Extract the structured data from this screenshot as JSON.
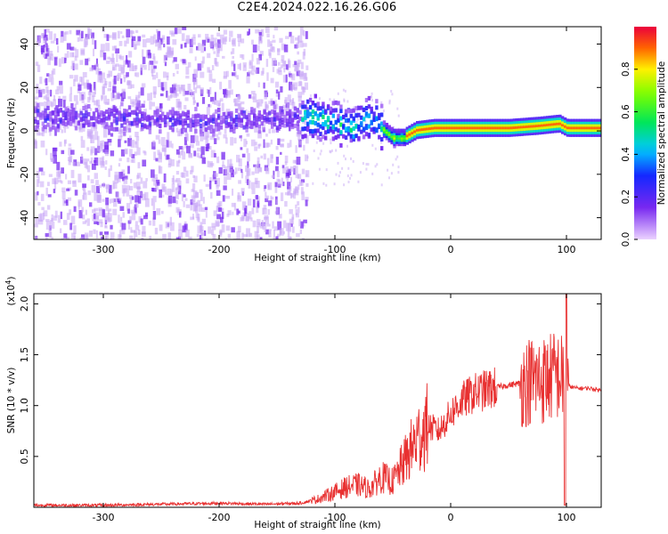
{
  "title": "C2E4.2024.022.16.26.G06",
  "colors": {
    "snr_line": "#e83030",
    "spectrogram_noise": "#c8a8f5",
    "spectrogram_band": "#7a2ef0"
  },
  "chart_data": [
    {
      "type": "heatmap",
      "xlabel": "Height of straight line (km)",
      "ylabel": "Frequency (Hz)",
      "xlim": [
        -360,
        130
      ],
      "ylim": [
        -50,
        48
      ],
      "xticks": [
        -300,
        -200,
        -100,
        0,
        100
      ],
      "yticks": [
        -40,
        -20,
        0,
        20,
        40
      ],
      "colorbar": {
        "label": "Normalized spectral amplitude",
        "range": [
          0,
          1
        ],
        "ticks": [
          0.0,
          0.2,
          0.4,
          0.6,
          0.8
        ],
        "colormap": "rainbow"
      },
      "ridge_center_hz": [
        [
          -360,
          6
        ],
        [
          -300,
          6
        ],
        [
          -250,
          5
        ],
        [
          -200,
          5
        ],
        [
          -150,
          5
        ],
        [
          -130,
          7
        ],
        [
          -115,
          6
        ],
        [
          -100,
          3
        ],
        [
          -85,
          2
        ],
        [
          -75,
          6
        ],
        [
          -65,
          4
        ],
        [
          -55,
          -1
        ],
        [
          -50,
          -3
        ],
        [
          -40,
          -3
        ],
        [
          -30,
          0
        ],
        [
          -15,
          1
        ],
        [
          0,
          1
        ],
        [
          25,
          1
        ],
        [
          50,
          1
        ],
        [
          75,
          2
        ],
        [
          93,
          3
        ],
        [
          100,
          1
        ],
        [
          130,
          1
        ]
      ]
    },
    {
      "type": "line",
      "xlabel": "Height of straight line (km)",
      "ylabel": "SNR (10 * v/v)",
      "yscale_note": "(x10",
      "yscale_exp": "4",
      "yscale_close": ")",
      "xlim": [
        -360,
        130
      ],
      "ylim": [
        0,
        2.1
      ],
      "xticks": [
        -300,
        -200,
        -100,
        0,
        100
      ],
      "yticks": [
        0.5,
        1.0,
        1.5,
        2.0
      ],
      "series": [
        {
          "x": [
            -360,
            -300,
            -250,
            -200,
            -160,
            -130,
            -115,
            -100,
            -90,
            -80,
            -70,
            -60,
            -50,
            -40,
            -30,
            -20,
            -10,
            0,
            10,
            20,
            30,
            40,
            50,
            60,
            70,
            80,
            90,
            95,
            100,
            105,
            110,
            120,
            130
          ],
          "y": [
            0.02,
            0.02,
            0.03,
            0.04,
            0.03,
            0.04,
            0.08,
            0.15,
            0.2,
            0.22,
            0.18,
            0.3,
            0.25,
            0.45,
            0.65,
            0.8,
            0.75,
            0.92,
            1.05,
            1.12,
            1.15,
            1.18,
            1.2,
            1.22,
            1.25,
            1.25,
            1.3,
            1.28,
            1.2,
            1.18,
            1.17,
            1.17,
            1.15
          ]
        }
      ]
    }
  ]
}
